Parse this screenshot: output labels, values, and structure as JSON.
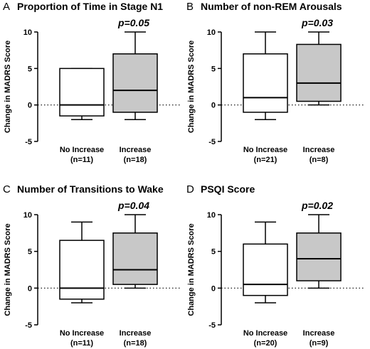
{
  "chart_data": [
    {
      "type": "box",
      "panel_letter": "A",
      "title": "Proportion of Time in  Stage N1",
      "p_value": "p=0.05",
      "ylabel": "Change in  MADRS Score",
      "ylim": [
        -5,
        10
      ],
      "yticks": [
        "10",
        "5",
        "0",
        "-5"
      ],
      "reference_line": 0,
      "categories": [
        {
          "label": "No Increase",
          "n": "(n=11)",
          "min": -2,
          "q1": -1.5,
          "median": 0,
          "q3": 5,
          "max": 5,
          "fill": "#ffffff"
        },
        {
          "label": "Increase",
          "n": "(n=18)",
          "min": -2,
          "q1": -1,
          "median": 2,
          "q3": 7,
          "max": 10,
          "fill": "#c8c8c8"
        }
      ]
    },
    {
      "type": "box",
      "panel_letter": "B",
      "title": "Number of  non-REM Arousals",
      "p_value": "p=0.03",
      "ylabel": "Change in  MADRS  Score",
      "ylim": [
        -5,
        10
      ],
      "yticks": [
        "10",
        "5",
        "0",
        "-5"
      ],
      "reference_line": 0,
      "categories": [
        {
          "label": "No Increase",
          "n": "(n=21)",
          "min": -2,
          "q1": -1,
          "median": 1,
          "q3": 7,
          "max": 10,
          "fill": "#ffffff"
        },
        {
          "label": "Increase",
          "n": "(n=8)",
          "min": 0,
          "q1": 0.5,
          "median": 3,
          "q3": 8.3,
          "max": 10,
          "fill": "#c8c8c8"
        }
      ]
    },
    {
      "type": "box",
      "panel_letter": "C",
      "title": "Number of  Transitions to  Wake",
      "p_value": "p=0.04",
      "ylabel": "Change in  MADRS Score",
      "ylim": [
        -5,
        10
      ],
      "yticks": [
        "10",
        "5",
        "0",
        "-5"
      ],
      "reference_line": 0,
      "categories": [
        {
          "label": "No Increase",
          "n": "(n=11)",
          "min": -2,
          "q1": -1.5,
          "median": 0,
          "q3": 6.5,
          "max": 9,
          "fill": "#ffffff"
        },
        {
          "label": "Increase",
          "n": "(n=18)",
          "min": 0,
          "q1": 0.5,
          "median": 2.5,
          "q3": 7.5,
          "max": 10,
          "fill": "#c8c8c8"
        }
      ]
    },
    {
      "type": "box",
      "panel_letter": "D",
      "title": "PSQI Score",
      "p_value": "p=0.02",
      "ylabel": "Change in  MADRS Score",
      "ylim": [
        -5,
        10
      ],
      "yticks": [
        "10",
        "5",
        "0",
        "-5"
      ],
      "reference_line": 0,
      "categories": [
        {
          "label": "No Increase",
          "n": "(n=20)",
          "min": -2,
          "q1": -1,
          "median": 0.5,
          "q3": 6,
          "max": 9,
          "fill": "#ffffff"
        },
        {
          "label": "Increase",
          "n": "(n=9)",
          "min": 0,
          "q1": 1,
          "median": 4,
          "q3": 7.5,
          "max": 10,
          "fill": "#c8c8c8"
        }
      ]
    }
  ]
}
